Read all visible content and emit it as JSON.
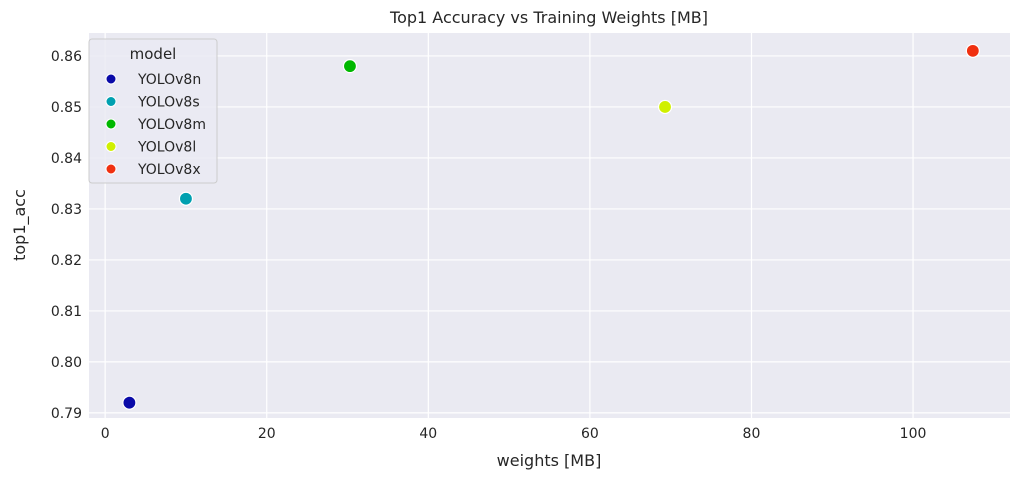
{
  "chart_data": {
    "type": "scatter",
    "title": "Top1 Accuracy vs Training Weights [MB]",
    "xlabel": "weights [MB]",
    "ylabel": "top1_acc",
    "xlim": [
      -2,
      112
    ],
    "ylim": [
      0.789,
      0.8645
    ],
    "xticks": [
      0,
      20,
      40,
      60,
      80,
      100
    ],
    "yticks": [
      0.79,
      0.8,
      0.81,
      0.82,
      0.83,
      0.84,
      0.85,
      0.86
    ],
    "xtick_labels": [
      "0",
      "20",
      "40",
      "60",
      "80",
      "100"
    ],
    "ytick_labels": [
      "0.79",
      "0.80",
      "0.81",
      "0.82",
      "0.83",
      "0.84",
      "0.85",
      "0.86"
    ],
    "grid": true,
    "legend": {
      "title": "model",
      "placement": "top-left"
    },
    "series": [
      {
        "name": "YOLOv8n",
        "color": "#0a0aa8",
        "x": [
          3.0
        ],
        "y": [
          0.792
        ]
      },
      {
        "name": "YOLOv8s",
        "color": "#00a0b0",
        "x": [
          10.0
        ],
        "y": [
          0.832
        ]
      },
      {
        "name": "YOLOv8m",
        "color": "#00b800",
        "x": [
          30.3
        ],
        "y": [
          0.858
        ]
      },
      {
        "name": "YOLOv8l",
        "color": "#d0f000",
        "x": [
          69.3
        ],
        "y": [
          0.85
        ]
      },
      {
        "name": "YOLOv8x",
        "color": "#f03010",
        "x": [
          107.4
        ],
        "y": [
          0.861
        ]
      }
    ]
  }
}
